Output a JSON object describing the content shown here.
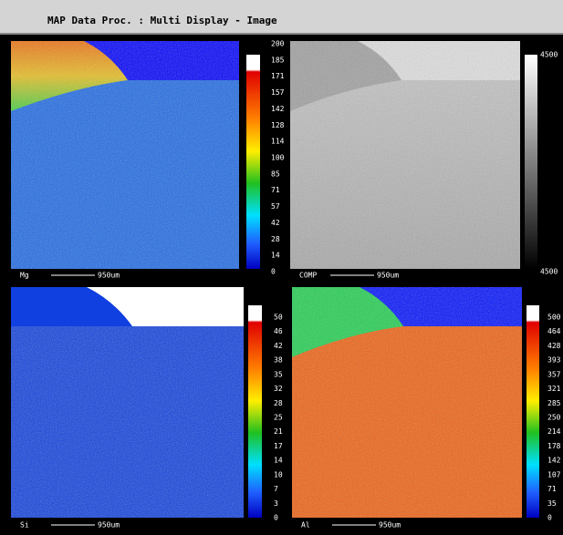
{
  "window": {
    "title": "MAP Data Proc. : Multi Display - Image"
  },
  "panels": [
    {
      "element": "Mg",
      "scale": "950um",
      "levels": [
        "200",
        "185",
        "171",
        "157",
        "142",
        "128",
        "114",
        "100",
        "85",
        "71",
        "57",
        "42",
        "28",
        "14",
        "0"
      ]
    },
    {
      "element": "COMP",
      "scale": "950um",
      "levels": [
        "4500",
        "4500"
      ]
    },
    {
      "element": "Si",
      "scale": "950um",
      "levels": [
        "50",
        "46",
        "42",
        "38",
        "35",
        "32",
        "28",
        "25",
        "21",
        "17",
        "14",
        "10",
        "7",
        "3",
        "0"
      ]
    },
    {
      "element": "Al",
      "scale": "950um",
      "levels": [
        "500",
        "464",
        "428",
        "393",
        "357",
        "321",
        "285",
        "250",
        "214",
        "178",
        "142",
        "107",
        "71",
        "35",
        "0"
      ]
    }
  ]
}
